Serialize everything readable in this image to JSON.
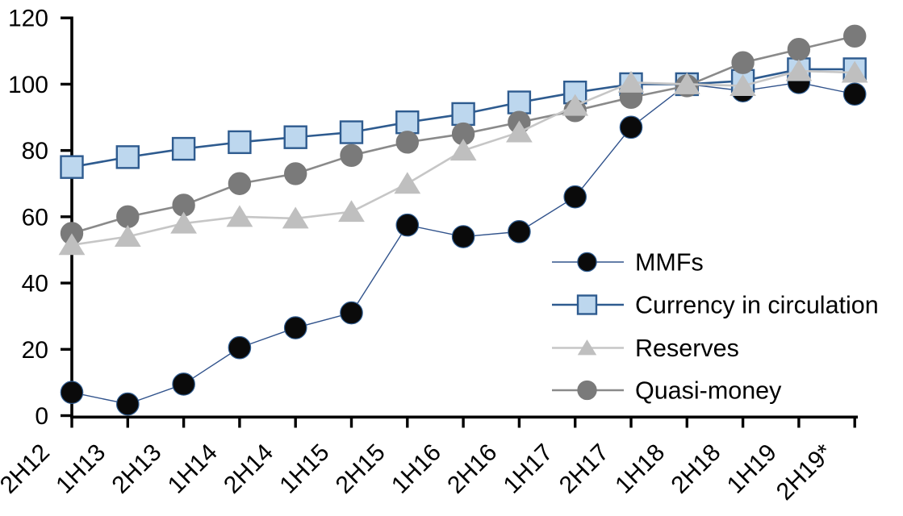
{
  "chart_data": {
    "type": "line",
    "title": "",
    "categories": [
      "2H12",
      "1H13",
      "2H13",
      "1H14",
      "2H14",
      "1H15",
      "2H15",
      "1H16",
      "2H16",
      "1H17",
      "2H17",
      "1H18",
      "2H18",
      "1H19",
      "2H19*"
    ],
    "series": [
      {
        "name": "MMFs",
        "marker": "circle",
        "marker_fill": "#0a0a0a",
        "marker_stroke": "#2E5B8F",
        "marker_stroke_width": 1.2,
        "line_color": "#31538C",
        "line_width": 1.4,
        "values": [
          7,
          3.5,
          9.5,
          20.5,
          26.5,
          31,
          57.5,
          54,
          55.5,
          66,
          87,
          100,
          98,
          100.5,
          97
        ]
      },
      {
        "name": "Currency in circulation",
        "marker": "square",
        "marker_fill": "#BDD7EE",
        "marker_stroke": "#2E5B8F",
        "marker_stroke_width": 2.4,
        "line_color": "#2E5B8F",
        "line_width": 2.6,
        "values": [
          75,
          78,
          80.5,
          82.5,
          84,
          85.5,
          88.5,
          91,
          94.5,
          97.5,
          100,
          100,
          101,
          104.5,
          104.5
        ]
      },
      {
        "name": "Reserves",
        "marker": "triangle",
        "marker_fill": "#BFBFBF",
        "marker_stroke": "#BFBFBF",
        "marker_stroke_width": 1,
        "line_color": "#C6C6C6",
        "line_width": 2.6,
        "values": [
          51.5,
          54,
          58,
          60,
          59.5,
          61.5,
          70,
          80,
          85.5,
          93.5,
          100.5,
          100,
          99.5,
          104,
          103.5
        ]
      },
      {
        "name": "Quasi-money",
        "marker": "circle",
        "marker_fill": "#7A7A7A",
        "marker_stroke": "#7A7A7A",
        "marker_stroke_width": 1,
        "line_color": "#8A8A8A",
        "line_width": 2.6,
        "values": [
          55,
          60,
          63.5,
          70,
          73,
          78.5,
          82.5,
          85,
          88.5,
          92,
          96,
          99.5,
          106.5,
          110.5,
          114.5
        ]
      }
    ],
    "ylim": [
      0,
      120
    ],
    "ytick_step": 20,
    "ytick_labels": [
      "0",
      "20",
      "40",
      "60",
      "80",
      "100",
      "120"
    ],
    "axis_color": "#000000",
    "grid": false,
    "legend": {
      "position": "inside-right",
      "entries": [
        "MMFs",
        "Currency in circulation",
        "Reserves",
        "Quasi-money"
      ]
    }
  }
}
